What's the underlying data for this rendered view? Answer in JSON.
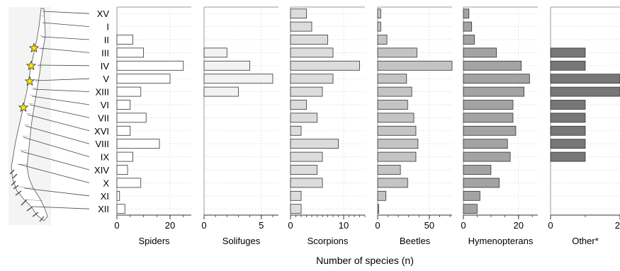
{
  "chart_data": {
    "type": "bar",
    "orientation": "horizontal",
    "xlabel": "Number of species (n)",
    "regions": [
      "XV",
      "I",
      "II",
      "III",
      "IV",
      "V",
      "XIII",
      "VI",
      "VII",
      "XVI",
      "VIII",
      "IX",
      "XIV",
      "X",
      "XI",
      "XII"
    ],
    "starred_regions": [
      "III",
      "IV",
      "V",
      "VII"
    ],
    "grid": "dotted",
    "colors": {
      "Spiders": "#ffffff",
      "Solifuges": "#f2f2f2",
      "Scorpions": "#dcdcdc",
      "Beetles": "#c4c4c4",
      "Hymenopterans": "#a3a3a3",
      "Other*": "#777777",
      "star": "#ffe600"
    },
    "panels": [
      {
        "name": "Spiders",
        "ticks": [
          0,
          20
        ],
        "xlim": [
          0,
          28
        ],
        "values": [
          null,
          null,
          6,
          10,
          25,
          20,
          9,
          5,
          11,
          5,
          16,
          6,
          4,
          9,
          1,
          3
        ]
      },
      {
        "name": "Solifuges",
        "ticks": [
          0,
          5
        ],
        "xlim": [
          0,
          6.5
        ],
        "values": [
          null,
          null,
          null,
          2,
          4,
          6,
          3,
          null,
          null,
          null,
          null,
          null,
          null,
          null,
          null,
          null
        ]
      },
      {
        "name": "Scorpions",
        "ticks": [
          0,
          10
        ],
        "xlim": [
          0,
          14
        ],
        "values": [
          3,
          4,
          7,
          8,
          13,
          8,
          6,
          3,
          5,
          2,
          9,
          6,
          5,
          6,
          2,
          2
        ]
      },
      {
        "name": "Beetles",
        "ticks": [
          0,
          50
        ],
        "xlim": [
          0,
          72
        ],
        "values": [
          3,
          3,
          9,
          38,
          72,
          28,
          33,
          29,
          35,
          37,
          39,
          37,
          22,
          29,
          8,
          1
        ]
      },
      {
        "name": "Hymenopterans",
        "ticks": [
          0,
          20
        ],
        "xlim": [
          0,
          27
        ],
        "values": [
          2,
          3,
          4,
          12,
          21,
          24,
          22,
          18,
          18,
          19,
          16,
          17,
          10,
          13,
          6,
          5
        ]
      },
      {
        "name": "Other*",
        "ticks": [
          0,
          2
        ],
        "xlim": [
          0,
          2
        ],
        "values": [
          null,
          null,
          null,
          1,
          1,
          2,
          2,
          1,
          1,
          1,
          1,
          1,
          null,
          null,
          null,
          null
        ]
      }
    ]
  }
}
